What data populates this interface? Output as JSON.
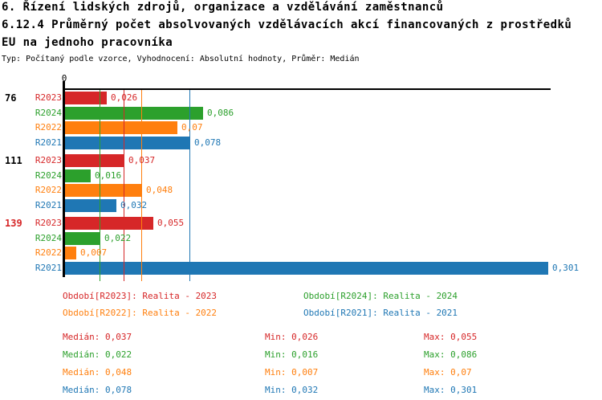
{
  "title": {
    "line1": "6. Řízení lidských zdrojů, organizace a vzdělávání zaměstnanců",
    "line2": "6.12.4 Průměrný počet absolvovaných vzdělávacích akcí financovaných z prostředků",
    "line3": "EU na jednoho pracovníka",
    "subtitle": "Typ: Počítaný podle vzorce, Vyhodnocení: Absolutní hodnoty, Průměr: Medián"
  },
  "colors": {
    "R2023": "#d62728",
    "R2024": "#2ca02c",
    "R2022": "#ff7f0e",
    "R2021": "#1f77b4",
    "axis": "#000000",
    "highlight_group": "#d62728"
  },
  "chart_data": {
    "type": "bar",
    "orientation": "horizontal",
    "axis": {
      "zero_tick_label": "0",
      "xlim": [
        0,
        0.31
      ],
      "grid": "median-lines-only"
    },
    "categories": [
      "76",
      "111",
      "139"
    ],
    "category_colors": [
      "#000000",
      "#000000",
      "#d62728"
    ],
    "series": [
      {
        "name": "R2023",
        "color": "#d62728",
        "values": [
          0.026,
          0.037,
          0.055
        ],
        "value_labels": [
          "0,026",
          "0,037",
          "0,055"
        ],
        "median": 0.037
      },
      {
        "name": "R2024",
        "color": "#2ca02c",
        "values": [
          0.086,
          0.016,
          0.022
        ],
        "value_labels": [
          "0,086",
          "0,016",
          "0,022"
        ],
        "median": 0.022
      },
      {
        "name": "R2022",
        "color": "#ff7f0e",
        "values": [
          0.07,
          0.048,
          0.007
        ],
        "value_labels": [
          "0,07",
          "0,048",
          "0,007"
        ],
        "median": 0.048
      },
      {
        "name": "R2021",
        "color": "#1f77b4",
        "values": [
          0.078,
          0.032,
          0.301
        ],
        "value_labels": [
          "0,078",
          "0,032",
          "0,301"
        ],
        "median": 0.078
      }
    ],
    "legend_position": "bottom"
  },
  "legend": {
    "items": [
      {
        "series": "R2023",
        "text": "Období[R2023]: Realita - 2023"
      },
      {
        "series": "R2024",
        "text": "Období[R2024]: Realita - 2024"
      },
      {
        "series": "R2022",
        "text": "Období[R2022]: Realita - 2022"
      },
      {
        "series": "R2021",
        "text": "Období[R2021]: Realita - 2021"
      }
    ]
  },
  "stats": {
    "rows": [
      {
        "series": "R2023",
        "median": "Medián: 0,037",
        "min": "Min: 0,026",
        "max": "Max: 0,055"
      },
      {
        "series": "R2024",
        "median": "Medián: 0,022",
        "min": "Min: 0,016",
        "max": "Max: 0,086"
      },
      {
        "series": "R2022",
        "median": "Medián: 0,048",
        "min": "Min: 0,007",
        "max": "Max: 0,07"
      },
      {
        "series": "R2021",
        "median": "Medián: 0,078",
        "min": "Min: 0,032",
        "max": "Max: 0,301"
      }
    ]
  }
}
